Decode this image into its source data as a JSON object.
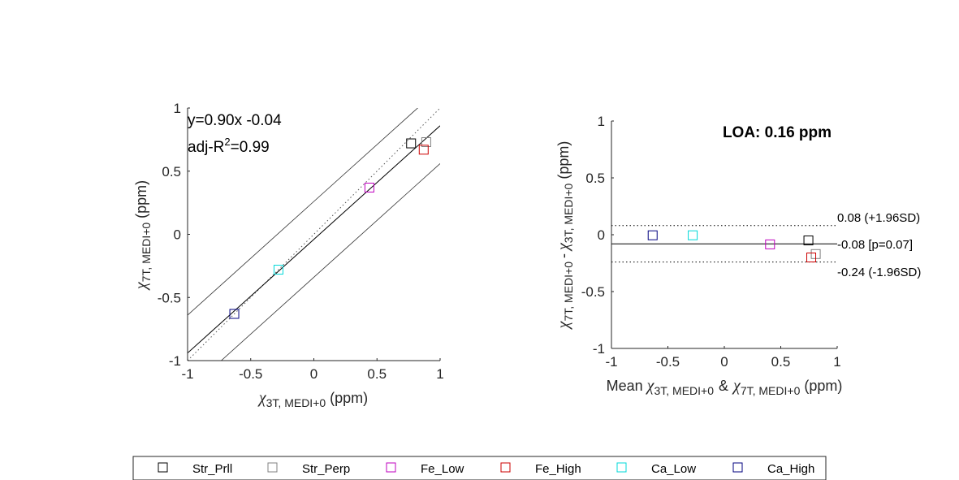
{
  "chart_data": [
    {
      "type": "scatter",
      "name": "correlation",
      "xlim": [
        -1,
        1
      ],
      "ylim": [
        -1,
        1
      ],
      "xticks": [
        "-1",
        "-0.5",
        "0",
        "0.5",
        "1"
      ],
      "yticks": [
        "-1",
        "-0.5",
        "0",
        "0.5",
        "1"
      ],
      "xlabel": {
        "symbol": "χ",
        "sub": "3T, MEDI+0",
        "unit": "(ppm)"
      },
      "ylabel": {
        "symbol": "χ",
        "sub": "7T, MEDI+0",
        "unit": "(ppm)"
      },
      "fit": {
        "slope": 0.9,
        "intercept": -0.04,
        "text": "y=0.90x -0.04",
        "r2_prefix": "adj-R",
        "r2_sup": "2",
        "r2_value": "=0.99"
      },
      "band_offset": 0.3,
      "points": [
        {
          "name": "Str_Prll",
          "x": 0.77,
          "y": 0.72
        },
        {
          "name": "Str_Perp",
          "x": 0.89,
          "y": 0.73
        },
        {
          "name": "Fe_Low",
          "x": 0.44,
          "y": 0.37
        },
        {
          "name": "Fe_High",
          "x": 0.87,
          "y": 0.67
        },
        {
          "name": "Ca_Low",
          "x": -0.28,
          "y": -0.28
        },
        {
          "name": "Ca_High",
          "x": -0.63,
          "y": -0.63
        }
      ]
    },
    {
      "type": "scatter",
      "name": "bland-altman",
      "xlim": [
        -1,
        1
      ],
      "ylim": [
        -1,
        1
      ],
      "xticks": [
        "-1",
        "-0.5",
        "0",
        "0.5",
        "1"
      ],
      "yticks": [
        "-1",
        "-0.5",
        "0",
        "0.5",
        "1"
      ],
      "title": "LOA: 0.16 ppm",
      "xlabel": {
        "prefix": "Mean",
        "symbol1": "χ",
        "sub1": "3T, MEDI+0",
        "amp": "&",
        "symbol2": "χ",
        "sub2": "7T, MEDI+0",
        "unit": "(ppm)"
      },
      "ylabel": {
        "symbol1": "χ",
        "sub1": "7T, MEDI+0",
        "minus": "-",
        "symbol2": "χ",
        "sub2": "3T, MEDI+0",
        "unit": "(ppm)"
      },
      "mean": -0.08,
      "upper": 0.08,
      "lower": -0.24,
      "mean_label": "-0.08 [p=0.07]",
      "upper_label": "0.08 (+1.96SD)",
      "lower_label": "-0.24 (-1.96SD)",
      "points": [
        {
          "name": "Str_Prll",
          "x": 0.745,
          "y": -0.05
        },
        {
          "name": "Str_Perp",
          "x": 0.81,
          "y": -0.17
        },
        {
          "name": "Fe_Low",
          "x": 0.405,
          "y": -0.085
        },
        {
          "name": "Fe_High",
          "x": 0.77,
          "y": -0.2
        },
        {
          "name": "Ca_Low",
          "x": -0.28,
          "y": -0.005
        },
        {
          "name": "Ca_High",
          "x": -0.635,
          "y": -0.005
        }
      ]
    }
  ],
  "legend": [
    {
      "name": "Str_Prll",
      "color": "#000000"
    },
    {
      "name": "Str_Perp",
      "color": "#808080"
    },
    {
      "name": "Fe_Low",
      "color": "#bf00bf"
    },
    {
      "name": "Fe_High",
      "color": "#cc0000"
    },
    {
      "name": "Ca_Low",
      "color": "#00d8d8"
    },
    {
      "name": "Ca_High",
      "color": "#00007f"
    }
  ]
}
